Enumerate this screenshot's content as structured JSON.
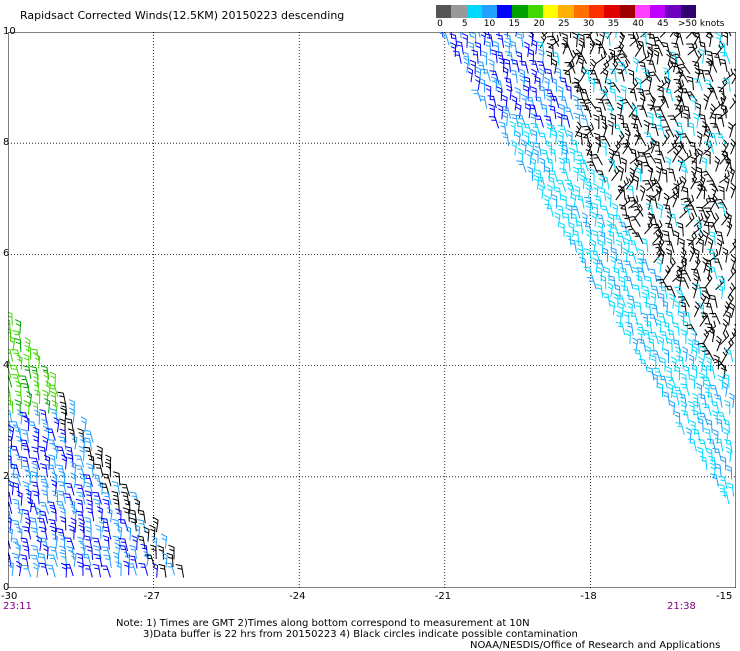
{
  "title": "Rapidsact Corrected Winds(12.5KM) 20150223 descending",
  "colorbar": {
    "labels": [
      "0",
      "5",
      "10",
      "15",
      "20",
      "25",
      "30",
      "35",
      "40",
      "45",
      ">50 knots"
    ],
    "colors": [
      "#555555",
      "#999999",
      "#00d8ff",
      "#20a0ff",
      "#0000ff",
      "#00a000",
      "#40d800",
      "#ffff00",
      "#ffb000",
      "#ff7000",
      "#ff3000",
      "#e00000",
      "#a00000",
      "#ff40ff",
      "#c000ff",
      "#7000c0",
      "#300070"
    ]
  },
  "axes": {
    "x_ticks": [
      "-30",
      "-27",
      "-24",
      "-21",
      "-18",
      "-15"
    ],
    "y_ticks": [
      "0",
      "2",
      "4",
      "6",
      "8",
      "10"
    ],
    "time_left": "23:11",
    "time_right": "21:38"
  },
  "notes": {
    "line1": "Note: 1) Times are GMT 2)Times along bottom correspond to measurement at 10N",
    "line2": "3)Data buffer is 22 hrs from 20150223 4) Black circles indicate possible contamination",
    "line3": "NOAA/NESDIS/Office of Research and Applications"
  },
  "chart_data": {
    "type": "wind-barb-map",
    "title": "Rapidsact Corrected Winds(12.5KM) 20150223 descending",
    "x_range": [
      -30,
      -15
    ],
    "y_range": [
      0,
      10
    ],
    "grid": true,
    "swaths": [
      {
        "name": "east-swath",
        "lon_range": [
          -21,
          -15
        ],
        "lat_range": [
          0.8,
          10
        ]
      },
      {
        "name": "west-swath",
        "lon_range": [
          -30,
          -26.6
        ],
        "lat_range": [
          0,
          4.9
        ]
      }
    ]
  }
}
